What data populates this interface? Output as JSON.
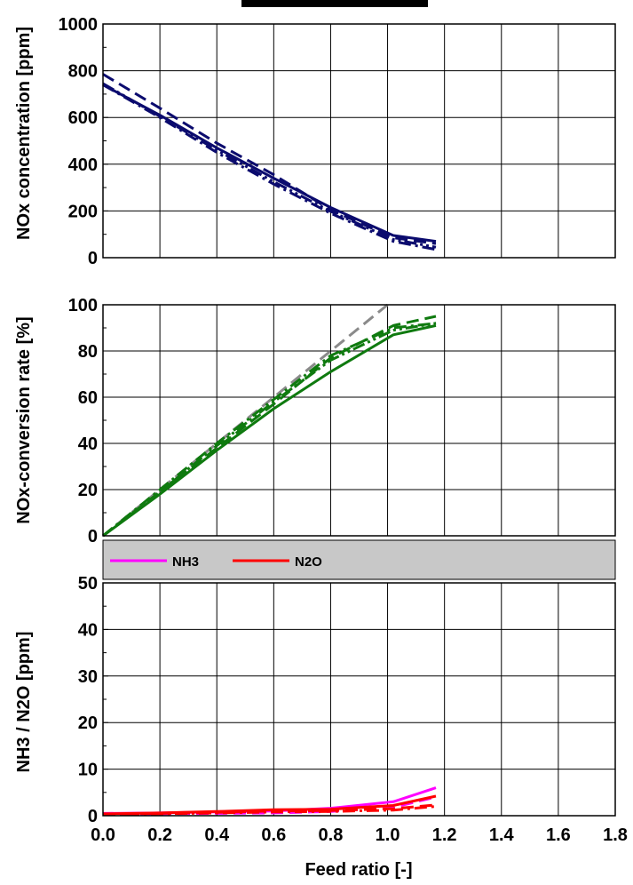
{
  "colors": {
    "nox": "#0b0b6e",
    "conversion": "#0f7a0f",
    "reference": "#8a8a8a",
    "nh3": "#ff00ff",
    "n2o": "#ff0000",
    "legend_bg": "#c8c8c8"
  },
  "xaxis": {
    "label": "Feed ratio [-]",
    "ticks": [
      "0.0",
      "0.2",
      "0.4",
      "0.6",
      "0.8",
      "1.0",
      "1.2",
      "1.4",
      "1.6",
      "1.8"
    ],
    "range": [
      0,
      1.8
    ]
  },
  "chart_data": [
    {
      "type": "line",
      "ylabel": "NOx concentration [ppm]",
      "ylim": [
        0,
        1000
      ],
      "yticks": [
        "0",
        "200",
        "400",
        "600",
        "800",
        "1000"
      ],
      "grid": true,
      "series": [
        {
          "style": "solid",
          "color": "#0b0b6e",
          "x": [
            0,
            0.2,
            0.4,
            0.6,
            0.8,
            1.02,
            1.17
          ],
          "y": [
            740,
            610,
            470,
            340,
            215,
            95,
            70
          ]
        },
        {
          "style": "dashed",
          "color": "#0b0b6e",
          "x": [
            0,
            0.2,
            0.4,
            0.6,
            0.8,
            1.02,
            1.17
          ],
          "y": [
            785,
            640,
            490,
            355,
            205,
            85,
            60
          ]
        },
        {
          "style": "dashdot",
          "color": "#0b0b6e",
          "x": [
            0,
            0.2,
            0.4,
            0.6,
            0.8,
            1.02,
            1.17
          ],
          "y": [
            740,
            600,
            450,
            315,
            190,
            70,
            35
          ]
        },
        {
          "style": "dashdotdot",
          "color": "#0b0b6e",
          "x": [
            0,
            0.2,
            0.4,
            0.6,
            0.8,
            1.02,
            1.17
          ],
          "y": [
            745,
            605,
            460,
            325,
            198,
            78,
            45
          ]
        }
      ]
    },
    {
      "type": "line",
      "ylabel": "NOx-conversion rate [%]",
      "ylim": [
        0,
        100
      ],
      "yticks": [
        "0",
        "20",
        "40",
        "60",
        "80",
        "100"
      ],
      "grid": true,
      "series": [
        {
          "style": "dashed",
          "color": "#8a8a8a",
          "x": [
            0,
            1.0
          ],
          "y": [
            0,
            100
          ]
        },
        {
          "style": "solid",
          "color": "#0f7a0f",
          "x": [
            0,
            0.2,
            0.4,
            0.6,
            0.8,
            1.02,
            1.17
          ],
          "y": [
            0,
            18,
            37,
            55,
            71,
            87,
            91
          ]
        },
        {
          "style": "dashed",
          "color": "#0f7a0f",
          "x": [
            0,
            0.2,
            0.4,
            0.6,
            0.8,
            1.02,
            1.17
          ],
          "y": [
            0,
            19,
            38,
            57,
            77,
            91,
            95
          ]
        },
        {
          "style": "dashdot",
          "color": "#0f7a0f",
          "x": [
            0,
            0.2,
            0.4,
            0.6,
            0.8,
            1.02,
            1.17
          ],
          "y": [
            0,
            20,
            40,
            59,
            78,
            90,
            92
          ]
        },
        {
          "style": "dashdotdot",
          "color": "#0f7a0f",
          "x": [
            0,
            0.2,
            0.4,
            0.6,
            0.8,
            1.02,
            1.17
          ],
          "y": [
            0,
            19,
            39,
            58,
            76,
            89,
            92
          ]
        }
      ]
    },
    {
      "type": "line",
      "ylabel": "NH3 / N2O [ppm]",
      "ylim": [
        0,
        50
      ],
      "yticks": [
        "0",
        "10",
        "20",
        "30",
        "40",
        "50"
      ],
      "grid": true,
      "legend": {
        "placement": "top",
        "entries": [
          "NH3",
          "N2O"
        ]
      },
      "series": [
        {
          "name": "NH3",
          "style": "solid",
          "color": "#ff00ff",
          "x": [
            0,
            0.2,
            0.4,
            0.6,
            0.8,
            1.02,
            1.17
          ],
          "y": [
            0.5,
            0.6,
            0.8,
            1.0,
            1.6,
            3.0,
            6.0
          ]
        },
        {
          "name": "NH3",
          "style": "dashed",
          "color": "#ff00ff",
          "x": [
            0,
            0.2,
            0.4,
            0.6,
            0.8,
            1.02,
            1.17
          ],
          "y": [
            0.3,
            0.4,
            0.5,
            0.6,
            0.9,
            1.8,
            4.0
          ]
        },
        {
          "name": "N2O",
          "style": "solid",
          "color": "#ff0000",
          "x": [
            0,
            0.2,
            0.4,
            0.6,
            0.8,
            1.02,
            1.17
          ],
          "y": [
            0.4,
            0.6,
            0.9,
            1.3,
            1.4,
            2.2,
            4.2
          ]
        },
        {
          "name": "N2O",
          "style": "dashed",
          "color": "#ff0000",
          "x": [
            0,
            0.2,
            0.4,
            0.6,
            0.8,
            1.02,
            1.17
          ],
          "y": [
            0.3,
            0.5,
            0.7,
            1.0,
            1.1,
            1.5,
            2.3
          ]
        },
        {
          "name": "N2O",
          "style": "dashdot",
          "color": "#ff0000",
          "x": [
            0,
            0.2,
            0.4,
            0.6,
            0.8,
            1.02,
            1.17
          ],
          "y": [
            0.2,
            0.4,
            0.6,
            0.8,
            0.9,
            1.2,
            2.0
          ]
        }
      ]
    }
  ]
}
